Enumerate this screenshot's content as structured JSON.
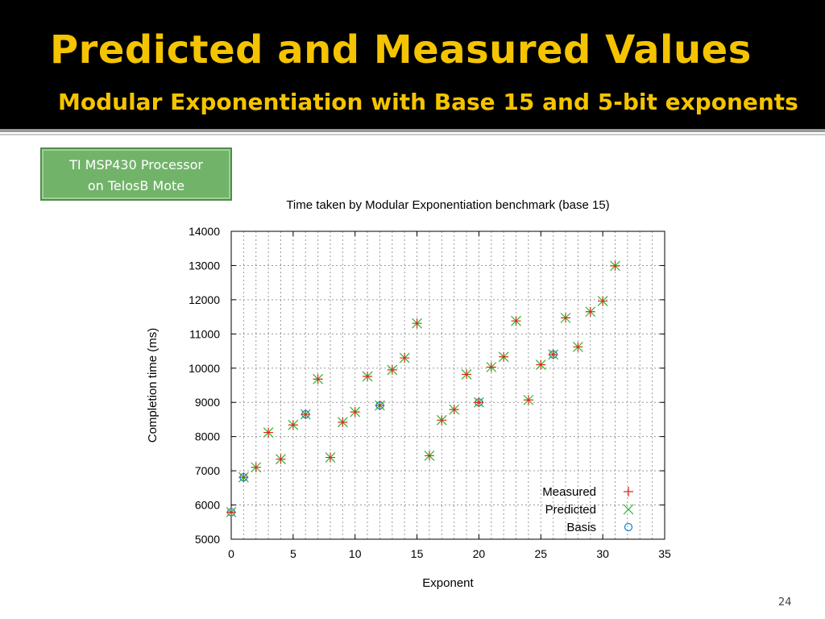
{
  "slide": {
    "title": "Predicted and Measured Values",
    "subtitle": "Modular Exponentiation with Base 15 and 5-bit exponents",
    "badge_line1": "TI MSP430 Processor",
    "badge_line2": "on TelosB Mote",
    "page_number": "24",
    "accent_color": "#f5c400",
    "badge_color": "#72b36a"
  },
  "chart_data": {
    "type": "scatter",
    "title": "Time taken by Modular Exponentiation benchmark (base 15)",
    "xlabel": "Exponent",
    "ylabel": "Completion time (ms)",
    "xlim": [
      0,
      35
    ],
    "ylim": [
      5000,
      14000
    ],
    "xticks": [
      0,
      5,
      10,
      15,
      20,
      25,
      30,
      35
    ],
    "yticks": [
      5000,
      6000,
      7000,
      8000,
      9000,
      10000,
      11000,
      12000,
      13000,
      14000
    ],
    "grid": true,
    "legend": "bottom-right",
    "series": [
      {
        "name": "Measured",
        "marker": "plus",
        "color": "#e0241a",
        "x": [
          0,
          1,
          2,
          3,
          4,
          5,
          6,
          7,
          8,
          9,
          10,
          11,
          12,
          13,
          14,
          15,
          16,
          17,
          18,
          19,
          20,
          21,
          22,
          23,
          24,
          25,
          26,
          27,
          28,
          29,
          30,
          31
        ],
        "y": [
          5790,
          6810,
          7100,
          8120,
          7340,
          8340,
          8650,
          9680,
          7390,
          8420,
          8720,
          9760,
          8910,
          9950,
          10300,
          11310,
          7440,
          8480,
          8790,
          9820,
          9000,
          10030,
          10330,
          11380,
          9070,
          10100,
          10400,
          11470,
          10620,
          11650,
          11960,
          12990
        ]
      },
      {
        "name": "Predicted",
        "marker": "cross",
        "color": "#2db52d",
        "x": [
          0,
          1,
          2,
          3,
          4,
          5,
          6,
          7,
          8,
          9,
          10,
          11,
          12,
          13,
          14,
          15,
          16,
          17,
          18,
          19,
          20,
          21,
          22,
          23,
          24,
          25,
          26,
          27,
          28,
          29,
          30,
          31
        ],
        "y": [
          5790,
          6810,
          7100,
          8120,
          7340,
          8340,
          8650,
          9680,
          7390,
          8420,
          8720,
          9760,
          8910,
          9950,
          10300,
          11310,
          7440,
          8480,
          8790,
          9820,
          9000,
          10030,
          10330,
          11380,
          9070,
          10100,
          10400,
          11470,
          10620,
          11650,
          11960,
          12990
        ]
      },
      {
        "name": "Basis",
        "marker": "circle",
        "color": "#1a84d6",
        "x": [
          0,
          1,
          6,
          12,
          20,
          26
        ],
        "y": [
          5790,
          6810,
          8650,
          8910,
          9000,
          10400
        ]
      }
    ]
  }
}
